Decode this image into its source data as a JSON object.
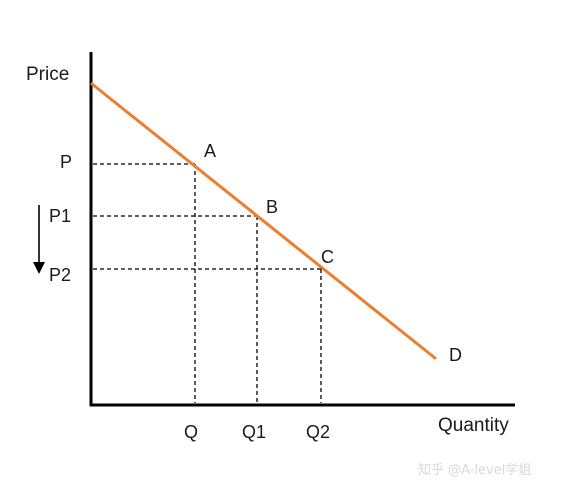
{
  "diagram": {
    "y_axis_label": "Price",
    "x_axis_label": "Quantity",
    "curve_label": "D",
    "curve_color": "#ED7D31",
    "axis_color": "#000000",
    "guide_color": "#000000",
    "price_labels": [
      "P",
      "P1",
      "P2"
    ],
    "quantity_labels": [
      "Q",
      "Q1",
      "Q2"
    ],
    "point_labels": [
      "A",
      "B",
      "C"
    ],
    "arrow": "price-decrease-arrow"
  },
  "watermark": "知乎 @A-level学姐"
}
